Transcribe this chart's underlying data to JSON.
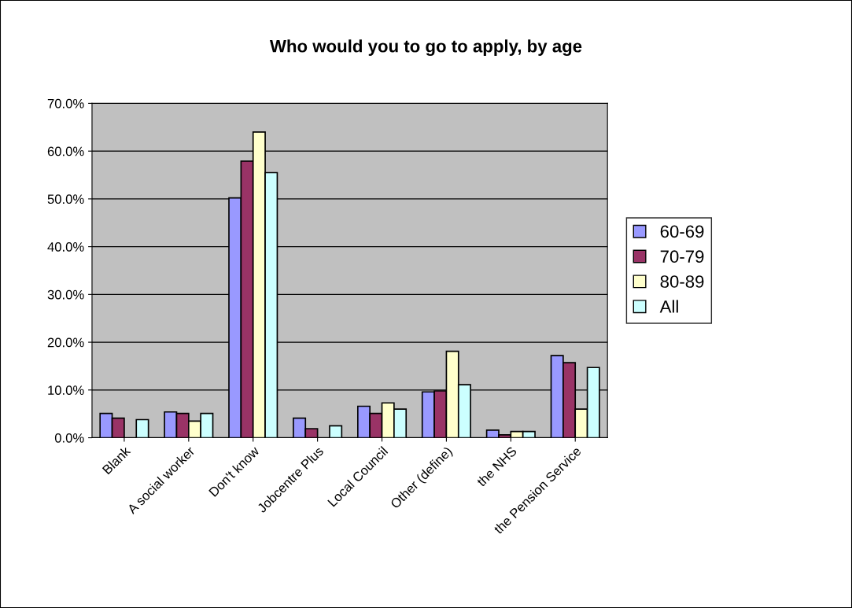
{
  "chart_data": {
    "type": "bar",
    "title": "Who would you to go to apply, by age",
    "categories": [
      "Blank",
      "A social worker",
      "Don't know",
      "Jobcentre Plus",
      "Local Council",
      "Other (define)",
      "the NHS",
      "the Pension Service"
    ],
    "series": [
      {
        "name": "60-69",
        "color": "#9999ff",
        "values": [
          5.1,
          5.4,
          50.2,
          4.1,
          6.6,
          9.6,
          1.6,
          17.2
        ]
      },
      {
        "name": "70-79",
        "color": "#993366",
        "values": [
          4.1,
          5.1,
          57.9,
          1.9,
          5.1,
          9.8,
          0.6,
          15.7
        ]
      },
      {
        "name": "80-89",
        "color": "#ffffcc",
        "values": [
          0,
          3.5,
          64.0,
          0,
          7.3,
          18.1,
          1.3,
          6.0
        ]
      },
      {
        "name": "All",
        "color": "#ccffff",
        "values": [
          3.8,
          5.1,
          55.5,
          2.5,
          6.0,
          11.1,
          1.3,
          14.7
        ]
      }
    ],
    "ylim": [
      0,
      70
    ],
    "yticks": [
      {
        "value": 0,
        "label": "0.0%"
      },
      {
        "value": 10,
        "label": "10.0%"
      },
      {
        "value": 20,
        "label": "20.0%"
      },
      {
        "value": 30,
        "label": "30.0%"
      },
      {
        "value": 40,
        "label": "40.0%"
      },
      {
        "value": 50,
        "label": "50.0%"
      },
      {
        "value": 60,
        "label": "60.0%"
      },
      {
        "value": 70,
        "label": "70.0%"
      }
    ],
    "grid": "y",
    "legend": "right"
  }
}
